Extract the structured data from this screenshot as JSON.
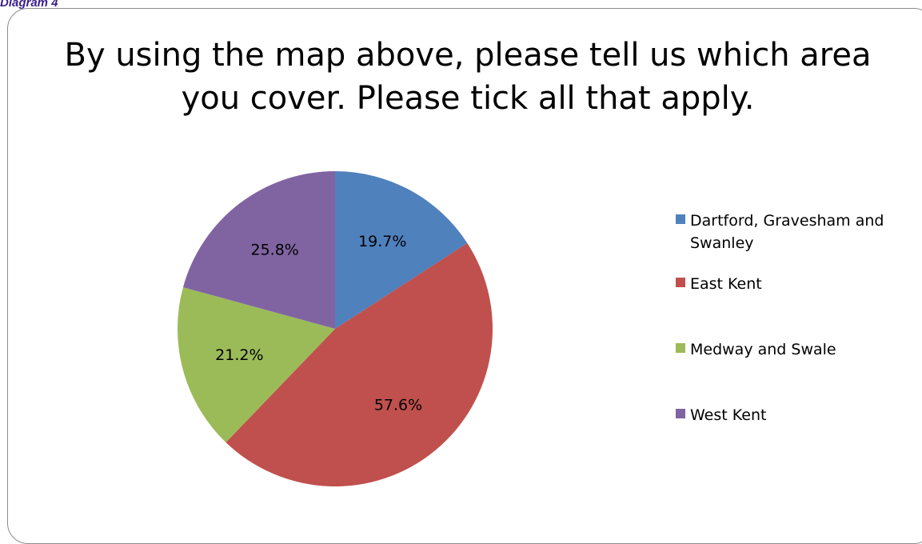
{
  "caption": "Diagram 4",
  "chart_data": {
    "type": "pie",
    "title": "By using the map above, please tell us which area you cover. Please tick all that apply.",
    "legend_position": "right",
    "slices": [
      {
        "label": "Dartford, Gravesham and Swanley",
        "value": 19.7,
        "display": "19.7%",
        "color": "#4f81bd"
      },
      {
        "label": "East Kent",
        "value": 57.6,
        "display": "57.6%",
        "color": "#c0504d"
      },
      {
        "label": "Medway and Swale",
        "value": 21.2,
        "display": "21.2%",
        "color": "#9bbb59"
      },
      {
        "label": "West Kent",
        "value": 25.8,
        "display": "25.8%",
        "color": "#8064a2"
      }
    ]
  }
}
